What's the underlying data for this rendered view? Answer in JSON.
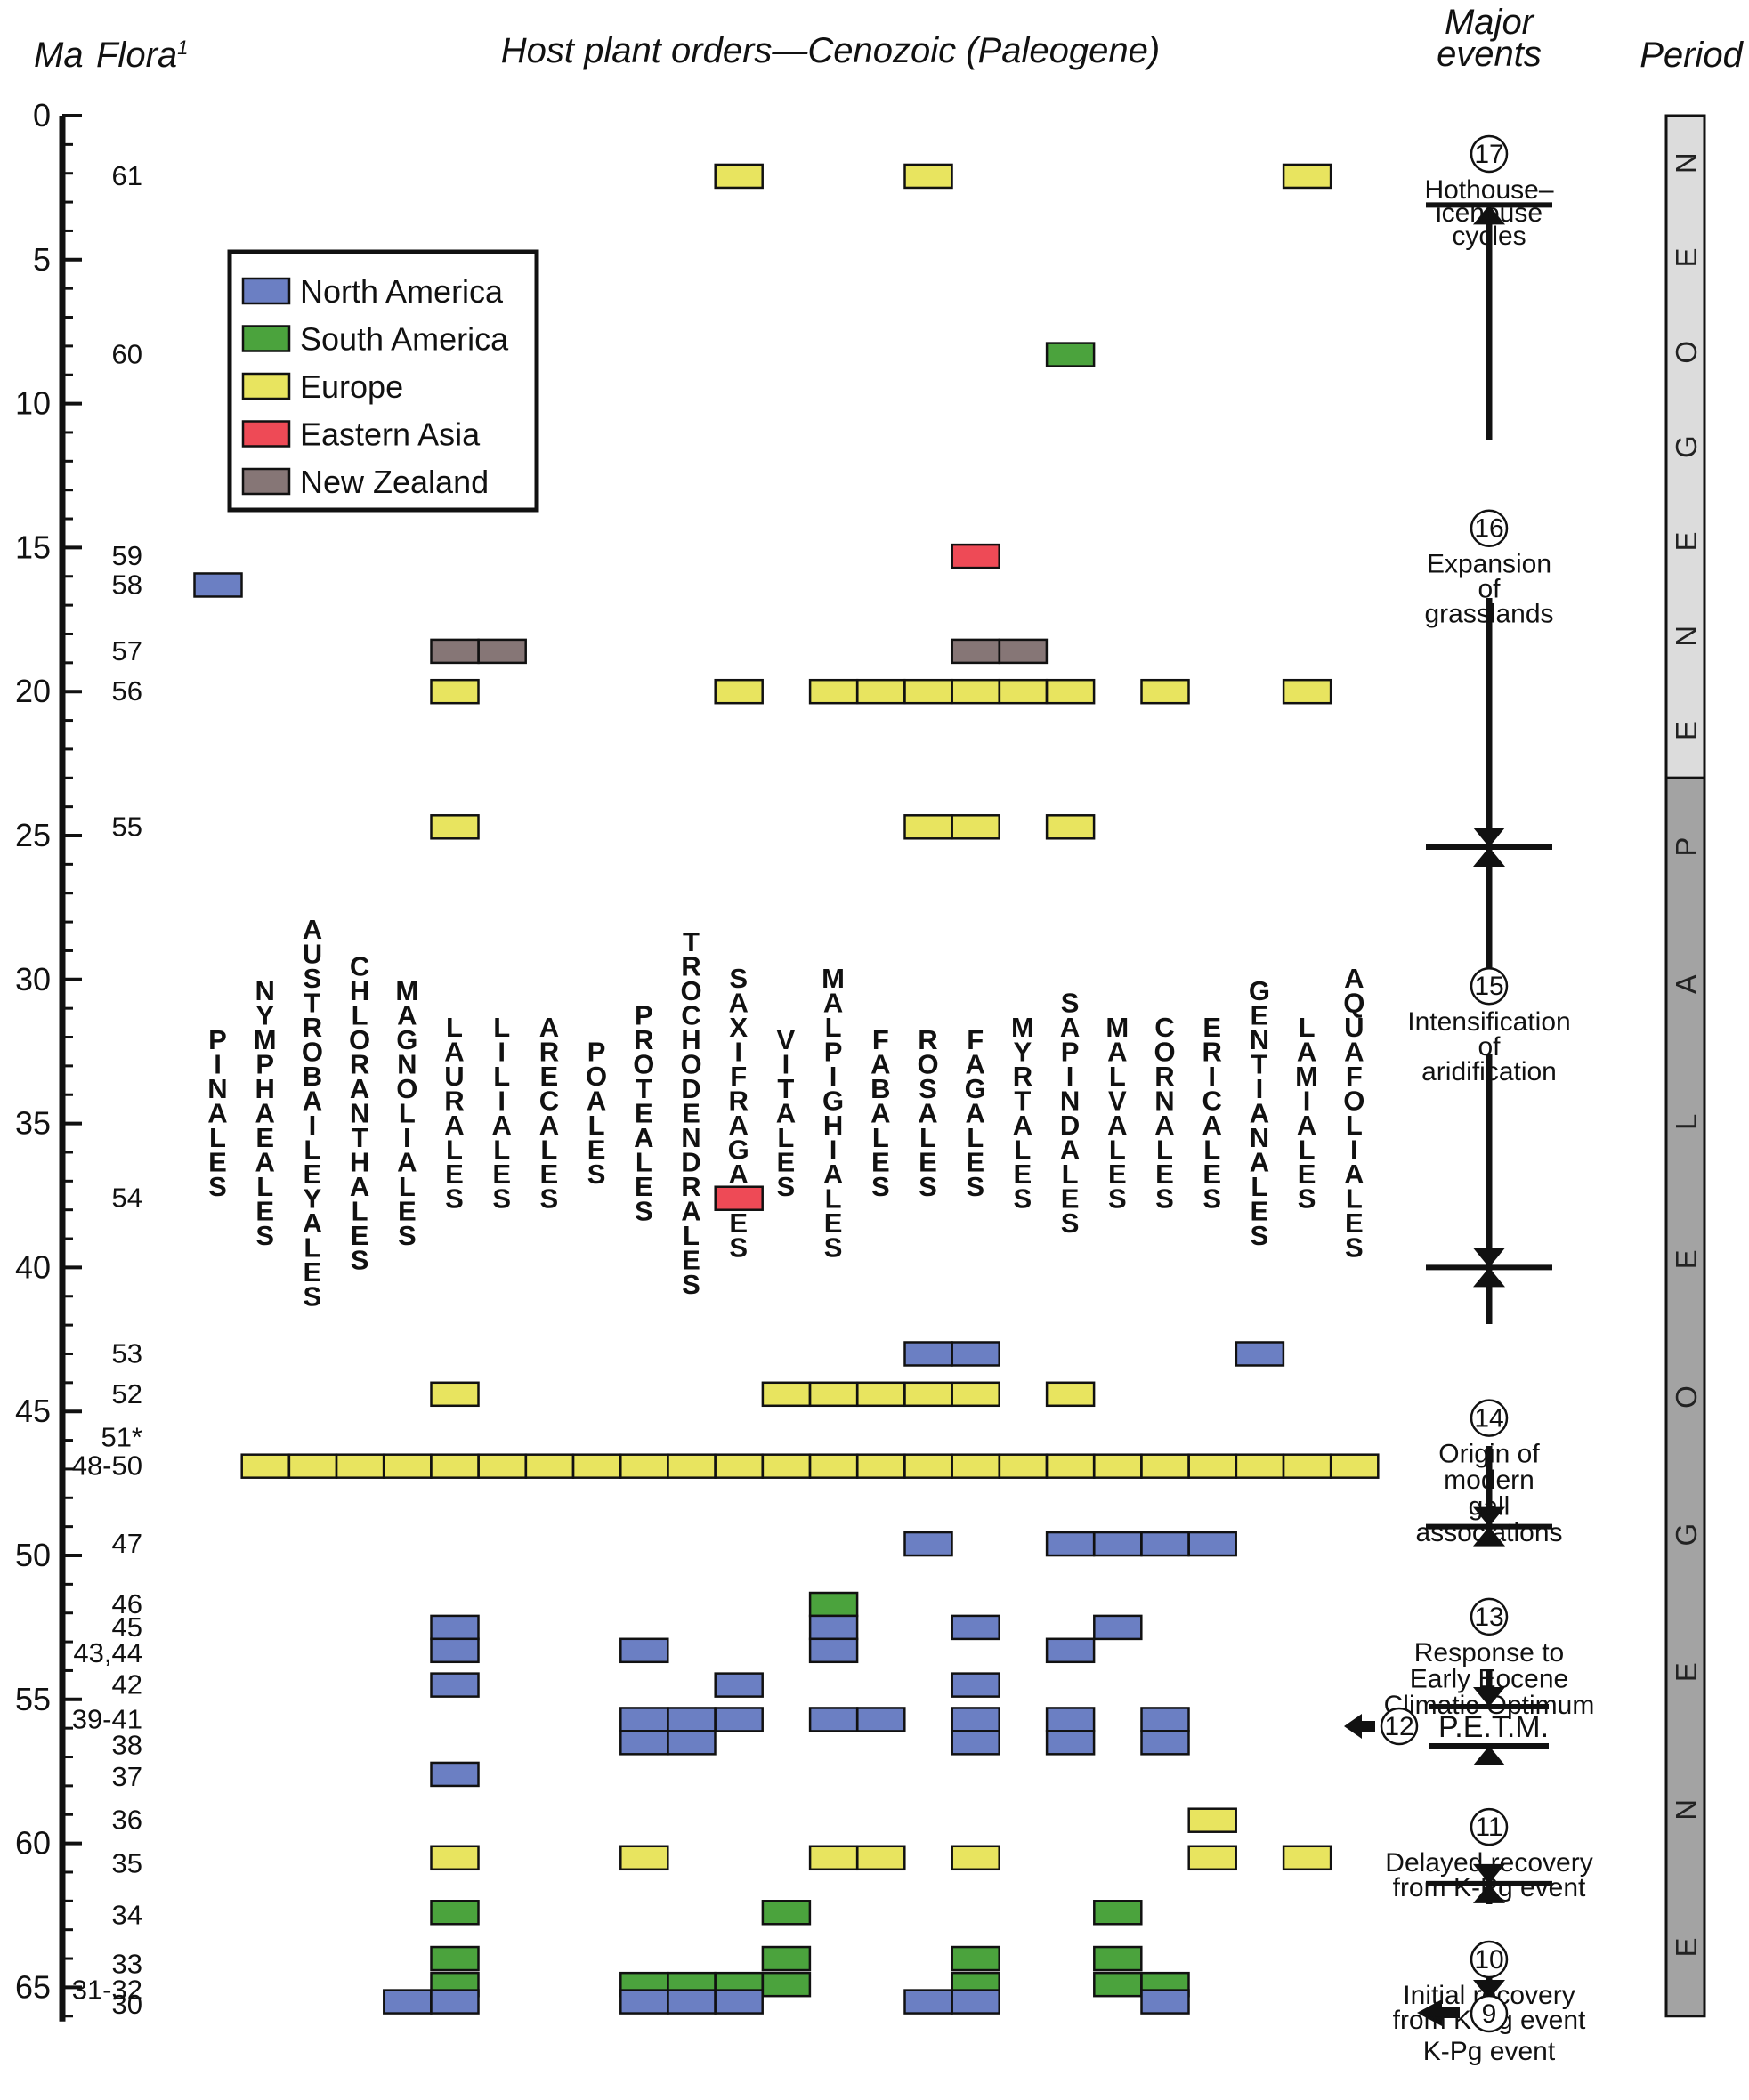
{
  "chart_data": {
    "type": "occurrence-matrix",
    "headers": {
      "ma": "Ma",
      "flora": "Flora",
      "flora_superscript": "1",
      "orders": "Host plant orders—Cenozoic (Paleogene)",
      "events": [
        "Major",
        "events"
      ],
      "period": "Period"
    },
    "y_axis": {
      "label": "Ma",
      "range": [
        0,
        66
      ],
      "ticks": [
        {
          "value": 0,
          "label": "0"
        },
        {
          "value": 5,
          "label": "5"
        },
        {
          "value": 10,
          "label": "10"
        },
        {
          "value": 15,
          "label": "15"
        },
        {
          "value": 20,
          "label": "20"
        },
        {
          "value": 25,
          "label": "25"
        },
        {
          "value": 30,
          "label": "30"
        },
        {
          "value": 35,
          "label": "35"
        },
        {
          "value": 40,
          "label": "40"
        },
        {
          "value": 45,
          "label": "45"
        },
        {
          "value": 50,
          "label": "50"
        },
        {
          "value": 55,
          "label": "55"
        },
        {
          "value": 60,
          "label": "60"
        },
        {
          "value": 65,
          "label": "65"
        }
      ]
    },
    "orders": [
      "PINALES",
      "NYMPHAEALES",
      "AUSTROBAILEYALES",
      "CHLORANTHALES",
      "MAGNOLIALES",
      "LAURALES",
      "LILIALES",
      "ARECALES",
      "POALES",
      "PROTEALES",
      "TROCHODENDRALES",
      "SAXIFRAGALES",
      "VITALES",
      "MALPIGHIALES",
      "FABALES",
      "ROSALES",
      "FAGALES",
      "MYRTALES",
      "SAPINDALES",
      "MALVALES",
      "CORNALES",
      "ERICALES",
      "GENTIANALES",
      "LAMIALES",
      "AQUAFOLIALES"
    ],
    "legend": [
      {
        "key": "NA",
        "label": "North America",
        "color": "#6b7fc3"
      },
      {
        "key": "SA",
        "label": "South America",
        "color": "#4ba33d"
      },
      {
        "key": "EU",
        "label": "Europe",
        "color": "#e8e45f"
      },
      {
        "key": "EA",
        "label": "Eastern Asia",
        "color": "#ee4a56"
      },
      {
        "key": "NZ",
        "label": "New Zealand",
        "color": "#867676"
      }
    ],
    "floras": [
      {
        "label": "61",
        "ma": 2.1
      },
      {
        "label": "60",
        "ma": 8.3
      },
      {
        "label": "59",
        "ma": 15.3
      },
      {
        "label": "58",
        "ma": 16.3
      },
      {
        "label": "57",
        "ma": 18.6
      },
      {
        "label": "56",
        "ma": 20.0
      },
      {
        "label": "55",
        "ma": 24.7
      },
      {
        "label": "54",
        "ma": 37.6
      },
      {
        "label": "53",
        "ma": 43.0
      },
      {
        "label": "52",
        "ma": 44.4
      },
      {
        "label": "51*",
        "ma": 45.9
      },
      {
        "label": "48-50",
        "ma": 46.9
      },
      {
        "label": "47",
        "ma": 49.6
      },
      {
        "label": "46",
        "ma": 51.7
      },
      {
        "label": "45",
        "ma": 52.5
      },
      {
        "label": "43,44",
        "ma": 53.4
      },
      {
        "label": "42",
        "ma": 54.5
      },
      {
        "label": "39-41",
        "ma": 55.7
      },
      {
        "label": "38",
        "ma": 56.6
      },
      {
        "label": "37",
        "ma": 57.7
      },
      {
        "label": "36",
        "ma": 59.2
      },
      {
        "label": "35",
        "ma": 60.7
      },
      {
        "label": "34",
        "ma": 62.5
      },
      {
        "label": "33",
        "ma": 64.2
      },
      {
        "label": "31-32",
        "ma": 65.1
      },
      {
        "label": "30",
        "ma": 65.6
      }
    ],
    "occurrences": [
      {
        "ma": 2.1,
        "region": "EU",
        "orders": [
          "SAXIFRAGALES",
          "ROSALES",
          "LAMIALES"
        ]
      },
      {
        "ma": 8.3,
        "region": "SA",
        "orders": [
          "SAPINDALES"
        ]
      },
      {
        "ma": 15.3,
        "region": "EA",
        "orders": [
          "FAGALES"
        ]
      },
      {
        "ma": 16.3,
        "region": "NA",
        "orders": [
          "PINALES"
        ]
      },
      {
        "ma": 18.6,
        "region": "NZ",
        "orders": [
          "LAURALES",
          "LILIALES",
          "FAGALES",
          "MYRTALES"
        ]
      },
      {
        "ma": 20.0,
        "region": "EU",
        "orders": [
          "LAURALES",
          "SAXIFRAGALES",
          "MALPIGHIALES",
          "FABALES",
          "ROSALES",
          "FAGALES",
          "MYRTALES",
          "SAPINDALES",
          "CORNALES",
          "LAMIALES"
        ]
      },
      {
        "ma": 24.7,
        "region": "EU",
        "orders": [
          "LAURALES",
          "ROSALES",
          "FAGALES",
          "SAPINDALES"
        ]
      },
      {
        "ma": 37.6,
        "region": "EA",
        "orders": [
          "SAXIFRAGALES"
        ]
      },
      {
        "ma": 43.0,
        "region": "NA",
        "orders": [
          "ROSALES",
          "FAGALES",
          "GENTIANALES"
        ]
      },
      {
        "ma": 44.4,
        "region": "EU",
        "orders": [
          "LAURALES",
          "VITALES",
          "MALPIGHIALES",
          "FABALES",
          "ROSALES",
          "FAGALES",
          "SAPINDALES"
        ]
      },
      {
        "ma": 46.9,
        "region": "EU",
        "orders": [
          "NYMPHAEALES",
          "AUSTROBAILEYALES",
          "CHLORANTHALES",
          "MAGNOLIALES",
          "LAURALES",
          "LILIALES",
          "ARECALES",
          "POALES",
          "PROTEALES",
          "TROCHODENDRALES",
          "SAXIFRAGALES",
          "VITALES",
          "MALPIGHIALES",
          "FABALES",
          "ROSALES",
          "FAGALES",
          "MYRTALES",
          "SAPINDALES",
          "MALVALES",
          "CORNALES",
          "ERICALES",
          "GENTIANALES",
          "LAMIALES",
          "AQUAFOLIALES"
        ]
      },
      {
        "ma": 49.6,
        "region": "NA",
        "orders": [
          "ROSALES",
          "SAPINDALES",
          "MALVALES",
          "CORNALES",
          "ERICALES"
        ]
      },
      {
        "ma": 51.7,
        "region": "SA",
        "orders": [
          "MALPIGHIALES"
        ]
      },
      {
        "ma": 52.5,
        "region": "NA",
        "orders": [
          "LAURALES",
          "MALPIGHIALES",
          "FAGALES",
          "MALVALES"
        ]
      },
      {
        "ma": 53.3,
        "region": "NA",
        "orders": [
          "LAURALES",
          "PROTEALES",
          "MALPIGHIALES",
          "SAPINDALES"
        ]
      },
      {
        "ma": 54.5,
        "region": "NA",
        "orders": [
          "LAURALES",
          "SAXIFRAGALES",
          "FAGALES"
        ]
      },
      {
        "ma": 55.7,
        "region": "NA",
        "orders": [
          "PROTEALES",
          "TROCHODENDRALES",
          "SAXIFRAGALES",
          "MALPIGHIALES",
          "FABALES",
          "FAGALES",
          "SAPINDALES",
          "CORNALES"
        ]
      },
      {
        "ma": 56.5,
        "region": "NA",
        "orders": [
          "PROTEALES",
          "TROCHODENDRALES",
          "FAGALES",
          "SAPINDALES",
          "CORNALES"
        ]
      },
      {
        "ma": 57.6,
        "region": "NA",
        "orders": [
          "LAURALES"
        ]
      },
      {
        "ma": 59.2,
        "region": "EU",
        "orders": [
          "ERICALES"
        ]
      },
      {
        "ma": 60.5,
        "region": "EU",
        "orders": [
          "LAURALES",
          "PROTEALES",
          "MALPIGHIALES",
          "FABALES",
          "FAGALES",
          "ERICALES",
          "LAMIALES"
        ]
      },
      {
        "ma": 62.4,
        "region": "SA",
        "orders": [
          "LAURALES",
          "VITALES",
          "MALVALES"
        ]
      },
      {
        "ma": 64.0,
        "region": "SA",
        "orders": [
          "LAURALES",
          "VITALES",
          "FAGALES",
          "MALVALES"
        ]
      },
      {
        "ma": 64.9,
        "region": "SA",
        "orders": [
          "LAURALES",
          "PROTEALES",
          "TROCHODENDRALES",
          "SAXIFRAGALES",
          "VITALES",
          "FAGALES",
          "MALVALES",
          "CORNALES"
        ]
      },
      {
        "ma": 65.5,
        "region": "NA",
        "orders": [
          "MAGNOLIALES",
          "LAURALES",
          "PROTEALES",
          "TROCHODENDRALES",
          "SAXIFRAGALES",
          "ROSALES",
          "FAGALES",
          "CORNALES"
        ]
      }
    ],
    "events": [
      {
        "number": "17",
        "lines": [
          "Hothouse–",
          "icehouse",
          "cycles"
        ],
        "ma": 1.7
      },
      {
        "number": "16",
        "lines": [
          "Expansion",
          "of",
          "grasslands"
        ],
        "ma": 14.7
      },
      {
        "number": "15",
        "lines": [
          "Intensification",
          "of",
          "aridification"
        ],
        "ma": 30.6
      },
      {
        "number": "14",
        "lines": [
          "Origin of",
          "modern",
          "gall",
          "associations"
        ],
        "ma": 45.6
      },
      {
        "number": "13",
        "lines": [
          "Response to",
          "Early Eocene",
          "Climatic Optimum"
        ],
        "ma": 52.5
      },
      {
        "number": "12",
        "lines": [
          "P.E.T.M."
        ],
        "ma": 56.0
      },
      {
        "number": "11",
        "lines": [
          "Delayed recovery",
          "from K-Pg event"
        ],
        "ma": 59.8
      },
      {
        "number": "10",
        "lines": [
          "Initial recovery",
          "from K-Pg event"
        ],
        "ma": 64.4
      },
      {
        "number": "9",
        "lines": [
          "K-Pg event"
        ],
        "ma": 66.1
      }
    ],
    "event_boundaries_ma": [
      3.1,
      25.4,
      40.0,
      49.0,
      61.4
    ],
    "periods": [
      {
        "name": "NEOGENE",
        "from_ma": 0,
        "to_ma": 23.0,
        "color": "#dcdcdc"
      },
      {
        "name": "PALEOGENE",
        "from_ma": 23.0,
        "to_ma": 66.0,
        "color": "#a3a3a3"
      }
    ]
  }
}
